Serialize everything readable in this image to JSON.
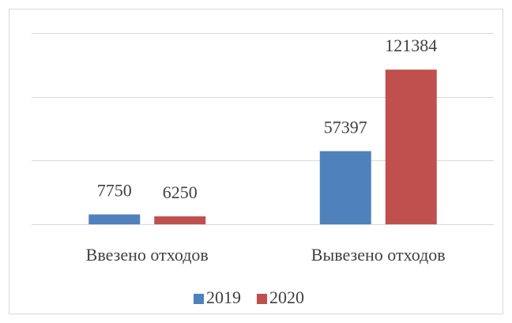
{
  "chart_data": {
    "type": "bar",
    "categories": [
      "Ввезено отходов",
      "Вывезено отходов"
    ],
    "series": [
      {
        "name": "2019",
        "color": "#4f81bd",
        "values": [
          7750,
          57397
        ]
      },
      {
        "name": "2020",
        "color": "#c0504d",
        "values": [
          6250,
          121384
        ]
      }
    ],
    "ylim": [
      0,
      150000
    ],
    "yticks": [
      0,
      50000,
      100000,
      150000
    ],
    "grid": true,
    "legend": "bottom"
  }
}
